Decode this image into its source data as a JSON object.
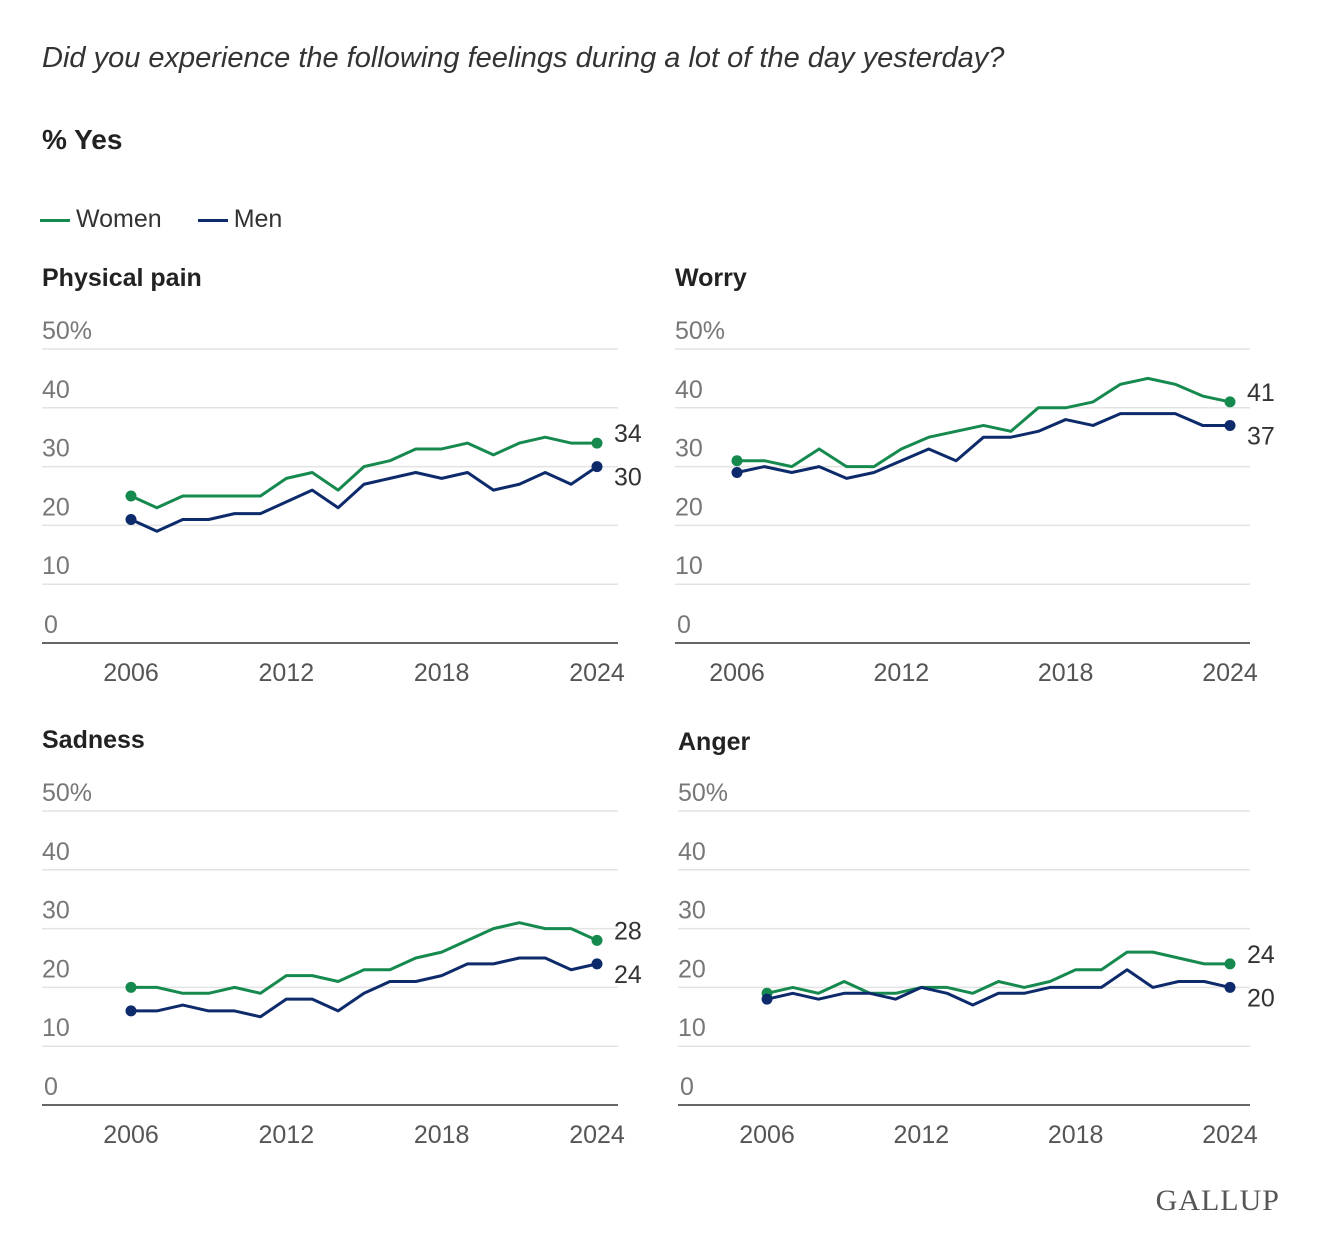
{
  "question": "Did you experience the following feelings during a lot of the day yesterday?",
  "subtitle": "% Yes",
  "legend": [
    {
      "label": "Women",
      "color": "#168a4e"
    },
    {
      "label": "Men",
      "color": "#0d2a6b"
    }
  ],
  "logo": "GALLUP",
  "chart_data": [
    {
      "type": "line",
      "title": "Physical pain",
      "ylim": [
        0,
        50
      ],
      "yticks": [
        "0",
        "10",
        "20",
        "30",
        "40",
        "50%"
      ],
      "xticks": [
        "2006",
        "2012",
        "2018",
        "2024"
      ],
      "x": [
        2006,
        2007,
        2008,
        2009,
        2010,
        2011,
        2012,
        2013,
        2014,
        2015,
        2016,
        2017,
        2018,
        2019,
        2020,
        2021,
        2022,
        2023,
        2024
      ],
      "series": [
        {
          "name": "Women",
          "values": [
            25,
            23,
            25,
            25,
            25,
            25,
            28,
            29,
            26,
            30,
            31,
            33,
            33,
            34,
            32,
            34,
            35,
            34,
            34
          ]
        },
        {
          "name": "Men",
          "values": [
            21,
            19,
            21,
            21,
            22,
            22,
            24,
            26,
            23,
            27,
            28,
            29,
            28,
            29,
            26,
            27,
            29,
            27,
            30
          ]
        }
      ],
      "end_labels": [
        "34",
        "30"
      ]
    },
    {
      "type": "line",
      "title": "Worry",
      "ylim": [
        0,
        50
      ],
      "yticks": [
        "0",
        "10",
        "20",
        "30",
        "40",
        "50%"
      ],
      "xticks": [
        "2006",
        "2012",
        "2018",
        "2024"
      ],
      "x": [
        2006,
        2007,
        2008,
        2009,
        2010,
        2011,
        2012,
        2013,
        2014,
        2015,
        2016,
        2017,
        2018,
        2019,
        2020,
        2021,
        2022,
        2023,
        2024
      ],
      "series": [
        {
          "name": "Women",
          "values": [
            31,
            31,
            30,
            33,
            30,
            30,
            33,
            35,
            36,
            37,
            36,
            40,
            40,
            41,
            44,
            45,
            44,
            42,
            41
          ]
        },
        {
          "name": "Men",
          "values": [
            29,
            30,
            29,
            30,
            28,
            29,
            31,
            33,
            31,
            35,
            35,
            36,
            38,
            37,
            39,
            39,
            39,
            37,
            37
          ]
        }
      ],
      "end_labels": [
        "41",
        "37"
      ]
    },
    {
      "type": "line",
      "title": "Sadness",
      "ylim": [
        0,
        50
      ],
      "yticks": [
        "0",
        "10",
        "20",
        "30",
        "40",
        "50%"
      ],
      "xticks": [
        "2006",
        "2012",
        "2018",
        "2024"
      ],
      "x": [
        2006,
        2007,
        2008,
        2009,
        2010,
        2011,
        2012,
        2013,
        2014,
        2015,
        2016,
        2017,
        2018,
        2019,
        2020,
        2021,
        2022,
        2023,
        2024
      ],
      "series": [
        {
          "name": "Women",
          "values": [
            20,
            20,
            19,
            19,
            20,
            19,
            22,
            22,
            21,
            23,
            23,
            25,
            26,
            28,
            30,
            31,
            30,
            30,
            28
          ]
        },
        {
          "name": "Men",
          "values": [
            16,
            16,
            17,
            16,
            16,
            15,
            18,
            18,
            16,
            19,
            21,
            21,
            22,
            24,
            24,
            25,
            25,
            23,
            24
          ]
        }
      ],
      "end_labels": [
        "28",
        "24"
      ]
    },
    {
      "type": "line",
      "title": "Anger",
      "ylim": [
        0,
        50
      ],
      "yticks": [
        "0",
        "10",
        "20",
        "30",
        "40",
        "50%"
      ],
      "xticks": [
        "2006",
        "2012",
        "2018",
        "2024"
      ],
      "x": [
        2006,
        2007,
        2008,
        2009,
        2010,
        2011,
        2012,
        2013,
        2014,
        2015,
        2016,
        2017,
        2018,
        2019,
        2020,
        2021,
        2022,
        2023,
        2024
      ],
      "series": [
        {
          "name": "Women",
          "values": [
            19,
            20,
            19,
            21,
            19,
            19,
            20,
            20,
            19,
            21,
            20,
            21,
            23,
            23,
            26,
            26,
            25,
            24,
            24
          ]
        },
        {
          "name": "Men",
          "values": [
            18,
            19,
            18,
            19,
            19,
            18,
            20,
            19,
            17,
            19,
            19,
            20,
            20,
            20,
            23,
            20,
            21,
            21,
            20
          ]
        }
      ],
      "end_labels": [
        "24",
        "20"
      ]
    }
  ]
}
